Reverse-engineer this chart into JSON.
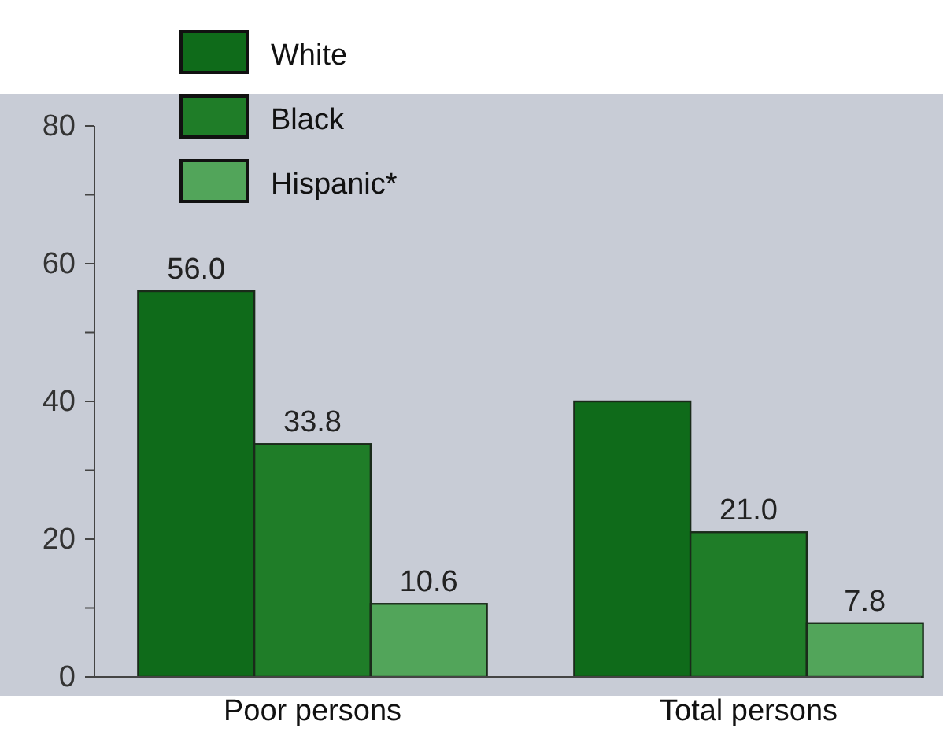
{
  "chart_data": {
    "type": "bar",
    "categories": [
      "Poor persons",
      "Total persons"
    ],
    "series": [
      {
        "name": "White",
        "color": "#0f6b1a",
        "values": [
          56.0,
          40
        ],
        "value_labels": [
          "56.0",
          null
        ]
      },
      {
        "name": "Black",
        "color": "#1f7d28",
        "values": [
          33.8,
          21.0
        ],
        "value_labels": [
          "33.8",
          "21.0"
        ]
      },
      {
        "name": "Hispanic*",
        "color": "#52a55a",
        "values": [
          10.6,
          7.8
        ],
        "value_labels": [
          "10.6",
          "7.8"
        ]
      }
    ],
    "ylim": [
      0,
      80
    ],
    "yticks": [
      0,
      {
        "value": 10,
        "label": null
      },
      20,
      {
        "value": 30,
        "label": null
      },
      40,
      {
        "value": 50,
        "label": null
      },
      60,
      {
        "value": 70,
        "label": null
      },
      80
    ],
    "grid": false,
    "legend": "top left"
  }
}
